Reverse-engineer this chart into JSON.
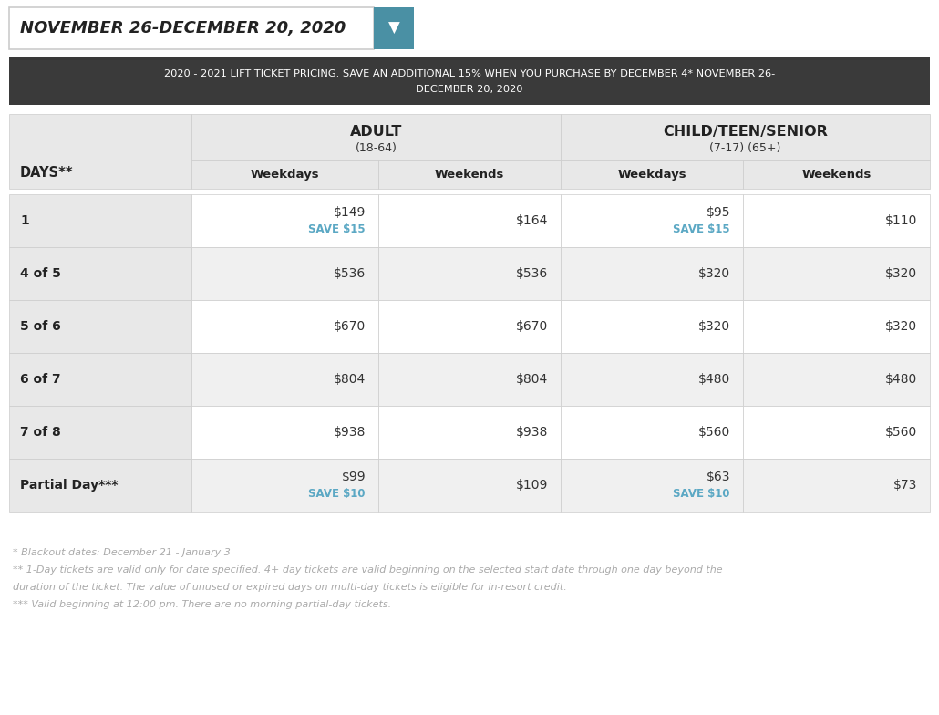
{
  "header_date": "NOVEMBER 26-DECEMBER 20, 2020",
  "subtitle_line1": "2020 - 2021 LIFT TICKET PRICING. SAVE AN ADDITIONAL 15% WHEN YOU PURCHASE BY DECEMBER 4* NOVEMBER 26-",
  "subtitle_line2": "DECEMBER 20, 2020",
  "col_header_left": "DAYS**",
  "col_header_adult": "ADULT",
  "col_header_adult_sub": "(18-64)",
  "col_header_child": "CHILD/TEEN/SENIOR",
  "col_header_child_sub": "(7-17) (65+)",
  "col_sub_weekdays": "Weekdays",
  "col_sub_weekends": "Weekends",
  "rows": [
    {
      "label": "1",
      "adult_weekday": "$149",
      "adult_weekday_save": "SAVE $15",
      "adult_weekend": "$164",
      "child_weekday": "$95",
      "child_weekday_save": "SAVE $15",
      "child_weekend": "$110"
    },
    {
      "label": "4 of 5",
      "adult_weekday": "$536",
      "adult_weekday_save": "",
      "adult_weekend": "$536",
      "child_weekday": "$320",
      "child_weekday_save": "",
      "child_weekend": "$320"
    },
    {
      "label": "5 of 6",
      "adult_weekday": "$670",
      "adult_weekday_save": "",
      "adult_weekend": "$670",
      "child_weekday": "$320",
      "child_weekday_save": "",
      "child_weekend": "$320"
    },
    {
      "label": "6 of 7",
      "adult_weekday": "$804",
      "adult_weekday_save": "",
      "adult_weekend": "$804",
      "child_weekday": "$480",
      "child_weekday_save": "",
      "child_weekend": "$480"
    },
    {
      "label": "7 of 8",
      "adult_weekday": "$938",
      "adult_weekday_save": "",
      "adult_weekend": "$938",
      "child_weekday": "$560",
      "child_weekday_save": "",
      "child_weekend": "$560"
    },
    {
      "label": "Partial Day***",
      "adult_weekday": "$99",
      "adult_weekday_save": "SAVE $10",
      "adult_weekend": "$109",
      "child_weekday": "$63",
      "child_weekday_save": "SAVE $10",
      "child_weekend": "$73"
    }
  ],
  "footnotes": [
    "* Blackout dates: December 21 - January 3",
    "** 1-Day tickets are valid only for date specified. 4+ day tickets are valid beginning on the selected start date through one day beyond the",
    "duration of the ticket. The value of unused or expired days on multi-day tickets is eligible for in-resort credit.",
    "*** Valid beginning at 12:00 pm. There are no morning partial-day tickets."
  ],
  "colors": {
    "bg": "#ffffff",
    "header_box_bg": "#ffffff",
    "header_box_border": "#cccccc",
    "dropdown_bg": "#4a90a4",
    "dark_banner_bg": "#3a3a3a",
    "dark_banner_text": "#ffffff",
    "table_header_bg": "#e8e8e8",
    "row_odd_bg": "#f0f0f0",
    "row_even_bg": "#ffffff",
    "label_col_bg": "#e8e8e8",
    "cell_border": "#cccccc",
    "text_dark": "#333333",
    "text_bold": "#222222",
    "save_text": "#5ba8c4",
    "footnote_text": "#aaaaaa"
  }
}
